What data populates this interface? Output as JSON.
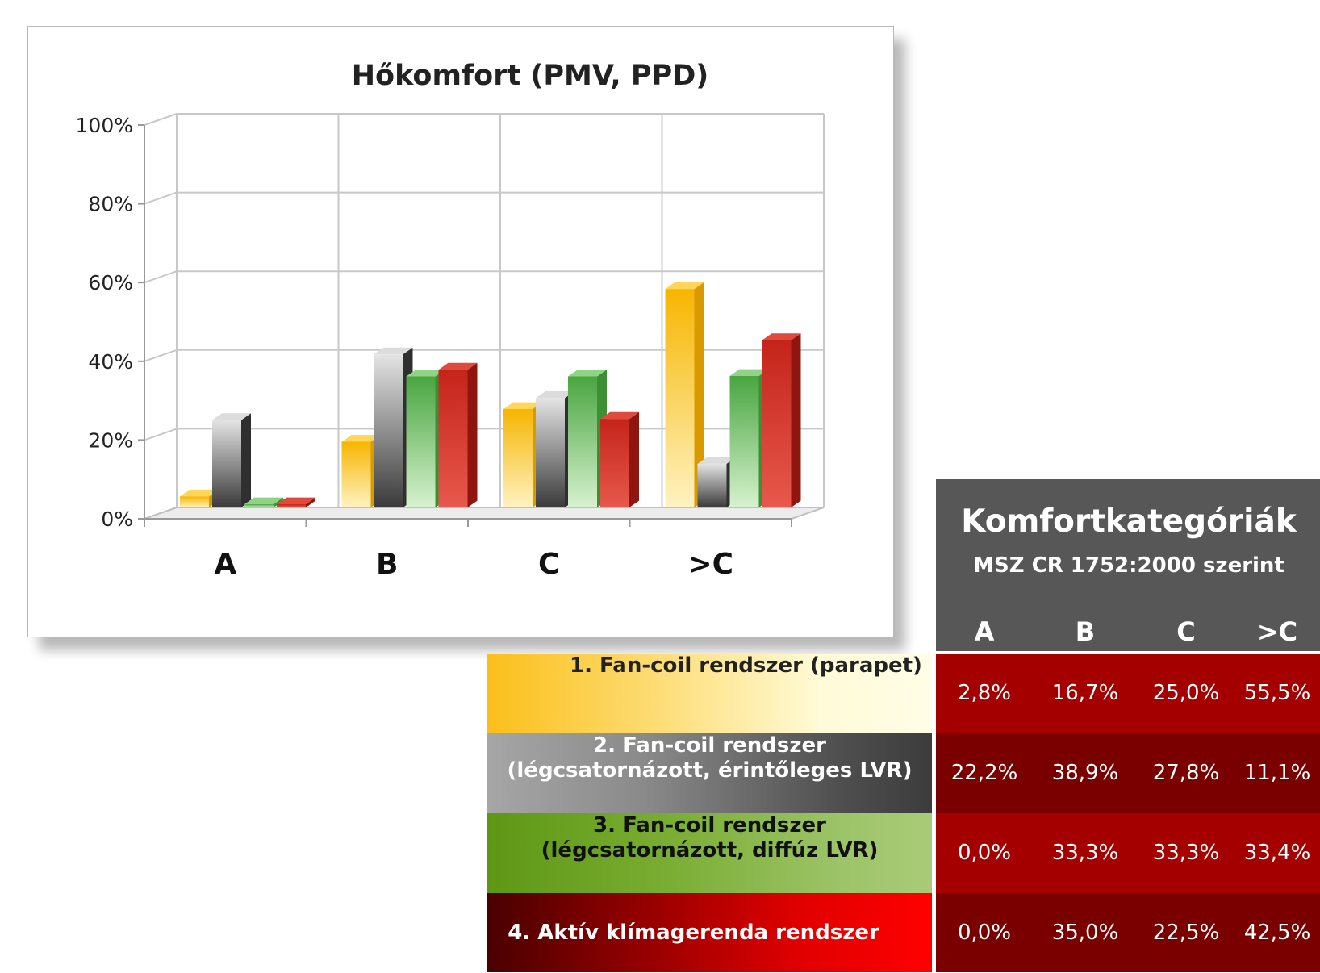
{
  "chart_data": {
    "type": "bar",
    "title": "Hőkomfort (PMV, PPD)",
    "categories": [
      "A",
      "B",
      "C",
      ">C"
    ],
    "y_ticks": [
      "0%",
      "20%",
      "40%",
      "60%",
      "80%",
      "100%"
    ],
    "ylim": [
      0,
      100
    ],
    "grid": true,
    "legend": "table-bottom-right",
    "series": [
      {
        "name": "1. Fan-coil rendszer  (parapet)",
        "values": [
          2.8,
          16.7,
          25.0,
          55.5
        ],
        "color": "#f5b800"
      },
      {
        "name": "2. Fan-coil rendszer (légcsatornázott, érintőleges LVR)",
        "values": [
          22.2,
          38.9,
          27.8,
          11.1
        ],
        "color": "#7a7a7a"
      },
      {
        "name": "3. Fan-coil rendszer (légcsatornázott, diffúz LVR)",
        "values": [
          0.0,
          33.3,
          33.3,
          33.4
        ],
        "color": "#55b84c"
      },
      {
        "name": "4. Aktív klímagerenda rendszer",
        "values": [
          0.0,
          35.0,
          22.5,
          42.5
        ],
        "color": "#cc2a1e"
      }
    ]
  },
  "table": {
    "title": "Komfortkategóriák",
    "subtitle": "MSZ CR 1752:2000 szerint",
    "columns": [
      "A",
      "B",
      "C",
      ">C"
    ],
    "rows": [
      {
        "label": [
          "1. Fan-coil rendszer  (parapet)"
        ],
        "label_color": "#222222",
        "values": [
          "2,8%",
          "16,7%",
          "25,0%",
          "55,5%"
        ]
      },
      {
        "label": [
          "2. Fan-coil rendszer",
          "(légcsatornázott, érintőleges LVR)"
        ],
        "label_color": "#ffffff",
        "values": [
          "22,2%",
          "38,9%",
          "27,8%",
          "11,1%"
        ]
      },
      {
        "label": [
          "3. Fan-coil rendszer",
          "(légcsatornázott, diffúz LVR)"
        ],
        "label_color": "#111111",
        "values": [
          "0,0%",
          "33,3%",
          "33,3%",
          "33,4%"
        ]
      },
      {
        "label": [
          "4. Aktív klímagerenda rendszer"
        ],
        "label_color": "#ffffff",
        "values": [
          "0,0%",
          "35,0%",
          "22,5%",
          "42,5%"
        ]
      }
    ]
  }
}
